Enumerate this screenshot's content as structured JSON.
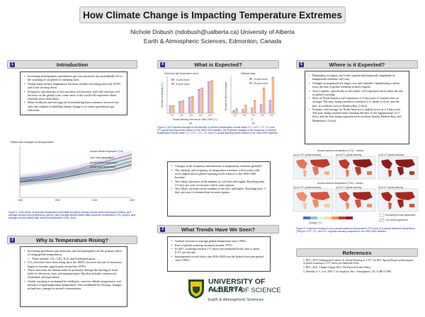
{
  "title": "How Climate Change is Impacting Temperature Extremes",
  "author": "Nichole Dobush (ndobush@ualberta.ca) University of Alberta",
  "affiliation": "Earth & Atmospheric Sciences, Edmonton, Canada",
  "sections": {
    "intro": {
      "num": "1",
      "title": "Introduction",
      "bullets": [
        "Increasing anthropogenic greenhouse gas concentrations has undoubtedly led to the warming of our planet at alarming rates.",
        "Global mean surface temperature has been steadily increasing since the 1970's and is not slowing down.",
        "Frequency and intensity of hot extremes will increase, and cold extremes will decrease on the global scale; some areas of the world will experience these extremes more than others.",
        "Many feedbacks and forcings aid in modulating these extremes, however the only true solution to building climate change is to reduce greenhouse gas emissions."
      ]
    },
    "why": {
      "num": "2",
      "title": "Why Is Temperature Rising?",
      "bullets": [
        {
          "text": "Increasing greenhouse gas emissions into the atmosphere are the primary driver of rising global temperatures.",
          "sub": false
        },
        {
          "text": "These include; CO₂, CH₄, N₂O, and fluorinated gases",
          "sub": true
        },
        {
          "text": "CO₂ emissions have been rising since the 1800's, however the rate of emissions began to increase significantly around the 1970's.",
          "sub": false
        },
        {
          "text": "These emissions are human-induced; primarily through the burning of fossil fuels for electricity, heat, and transportation. But also includes commercial, residential, and agriculture.",
          "sub": false
        },
        {
          "text": "Global warming is modulated by feedbacks: snow/ice albedo-temperature, soil moisture-evapotranspiration-temperature. Also modulated by forcings: changes in land-use, changes in aerosol concentration.",
          "sub": false
        }
      ]
    },
    "what_expected": {
      "num": "4",
      "title": "What is Expected?",
      "bullets": [
        "Changes in the frequency and intensity of temperature extremes globally?",
        "The intensity and frequency of temperature extremes will increase with every degree above global warming levels relative to the 1850-1900 baseline.",
        "Very likely decreases in the number of cold days and nights. Reaching near: 2.5 days per year of extreme cold in some regions.",
        "Very likely increases in the number of hot days and nights. Reaching near: 3 days per year of extreme heat in some regions."
      ]
    },
    "trends": {
      "num": "3",
      "title": "What Trends Have We Seen?",
      "bullets": [
        "Gradual increase in average global temperature since 1850's.",
        "Rate of global warming increased around 1970's.",
        "In 2017, warming reached 1°C above pre-industrial levels, this is about 0.2°C per decade.",
        "Instrumental records show that 2016-2020 was the hottest five-year period since 1850's."
      ]
    },
    "where": {
      "num": "5",
      "title": "Where is it Expected?",
      "bullets": [
        "Depending on region, and scales (spatial and temporal), magnitude of temperature extremes will vary.",
        "Changes in magnitude are larger over mid-latitudes. Quantifying to about twice the rate of global warming in these regions.",
        "Arctic regions, specifically in the winter, will experience three times the rate of global warming.",
        "Most of North America will experience 2.4 days/year of extreme heat on average. The max. being reached in southern U.S. plains (3 d/yr), and the min. in southern coast of Hudson Bay (2 d/yr).",
        "Extreme cold average for North America is slightly lower at 2.2 days/year. The max. being reached from Canadian Rockies to the Appalachians (2.5 d/yr), and the min. being experienced in northern Alaska, Hudson Bay, and Maritimes (<2 d/yr)."
      ]
    },
    "references": {
      "title": "References",
      "items": [
        "1. IPCC, 2018: Framing and Context. In: Global Warming of 1.5°C. An IPCC Special Report on the impacts of global warming of 1.5°C above pre-industrial levels.",
        "2. IPCC, 2021: Climate Change 2021: The Physical Science Basis.",
        "3. Sheridan, S. C. et al. 2019. J. of Geophysic. Res.: Atmospheres, 124, 11,885-11,898."
      ]
    }
  },
  "captions": {
    "fig1": "Figure 1: Time series of observed temperature anomalies for global average annual mean temperature (black), land average annual mean temperature (green), land average annual hottest daily maximum temperature (TXx, purple), land average annual coldest daily minimum temperature (TNn, blue).",
    "fig2": "Figure 2: (a) Projected changes in the intensity of extreme temperature events under 1°C, 1.5°C, 2°C, 3°C and 4°C global warming levels relative to the 1850-1900 baseline. (b) Projected changes in the frequency of extreme temperature events under 1°C, 1.5°C, 2°C, 3°C and 4°C global warming levels relative to the 1850-1900 baseline.",
    "fig3": "Figure 3: Projected changes in (a-c) annual maximum temperature (TXx) and (d-f) annual minimum temperature (TNn) at 1.5°C, 2°C, and 4°C of global warming compared to the 1850-1900 baseline."
  },
  "fig1": {
    "title": "Observed changes in temperature",
    "legend": [
      "Annual hottest temperature (TXx)",
      "Land mean temperature",
      "Annual hottest temperature",
      "Global mean temperature"
    ],
    "legend_colors": [
      "#8a3ab9",
      "#2e8b57",
      "#4a7fd4",
      "#222222"
    ],
    "xticks": [
      "1960",
      "1980",
      "2000",
      "2020"
    ]
  },
  "fig2": {
    "left_title": "Extremely high temperature event",
    "right_title": "Global land",
    "legend_a": [
      "10-year event",
      "50-year event"
    ],
    "legend_b": [
      "10-year event",
      "50-year event"
    ],
    "xticks": [
      "1.0",
      "1.5",
      "2.0",
      "3.0",
      "4.0"
    ],
    "a_label": "(a)",
    "b_label": "(b)",
    "a_xlabel": "Global warming level above 1850–1900 (°C)",
    "b_xlabel": "°C",
    "a_ylabel": "Increase in intensity (°C)",
    "b_ylabel": "Number of times as frequent"
  },
  "fig3": {
    "row1": [
      "(a) At 1.5°C global warming",
      "(b) At 2°C global warming",
      "(c) At 4°C global warming"
    ],
    "row2": [
      "(d) At 1.5°C global warming",
      "(e) At 2°C global warming",
      "(f) At 4°C global warming"
    ],
    "row1_header": "Annual maximum temperature (TXx) – median",
    "row2_header": "Annual minimum temperature (TNn) – median",
    "colorbar_label": "Change (°C)",
    "legend": [
      "Robust",
      "High model agreement",
      "Low model agreement"
    ]
  },
  "footer": {
    "university": "UNIVERSITY OF ALBERTA",
    "faculty": "FACULTY OF SCIENCE",
    "department": "Earth & Atmospheric Sciences"
  },
  "chart_data": [
    {
      "type": "line",
      "title": "Observed changes in temperature",
      "x": [
        1960,
        1970,
        1980,
        1990,
        2000,
        2010,
        2020
      ],
      "series": [
        {
          "name": "Annual hottest temperature (TXx)",
          "values": [
            0.1,
            0.2,
            0.4,
            0.6,
            0.9,
            1.2,
            1.5
          ]
        },
        {
          "name": "Land mean temperature",
          "values": [
            0.0,
            0.1,
            0.3,
            0.5,
            0.8,
            1.0,
            1.3
          ]
        },
        {
          "name": "Annual hottest temperature",
          "values": [
            -0.1,
            0.1,
            0.2,
            0.4,
            0.6,
            0.8,
            1.1
          ]
        },
        {
          "name": "Global mean temperature",
          "values": [
            -0.1,
            0.0,
            0.1,
            0.3,
            0.5,
            0.6,
            0.9
          ]
        }
      ],
      "ylim": [
        -1,
        2
      ]
    },
    {
      "type": "bar",
      "title": "Extremely high temperature event",
      "categories": [
        "1.0",
        "1.5",
        "2.0",
        "3.0",
        "4.0"
      ],
      "series": [
        {
          "name": "10-year event",
          "values": [
            1.2,
            1.9,
            2.6,
            3.9,
            5.1
          ]
        },
        {
          "name": "50-year event",
          "values": [
            1.2,
            2.0,
            2.7,
            4.1,
            5.3
          ]
        }
      ],
      "ylim": [
        0,
        6
      ]
    },
    {
      "type": "bar",
      "title": "Global land",
      "categories": [
        "1.0",
        "1.5",
        "2.0",
        "3.0",
        "4.0"
      ],
      "series": [
        {
          "name": "10-year event",
          "values": [
            2.8,
            4.1,
            5.6,
            9.4,
            13.9
          ]
        },
        {
          "name": "50-year event",
          "values": [
            4.8,
            8.6,
            13.9,
            27.4,
            39.2
          ]
        }
      ],
      "ylim": [
        0,
        40
      ]
    }
  ]
}
